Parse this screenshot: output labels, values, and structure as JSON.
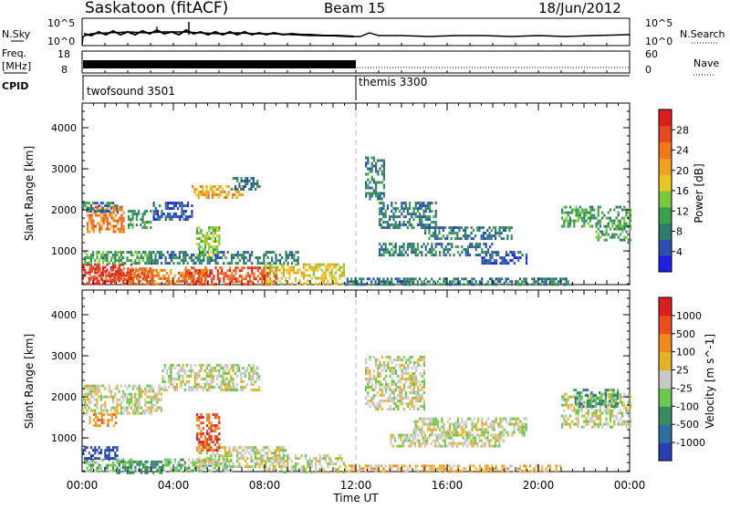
{
  "header": {
    "station": "Saskatoon (fitACF)",
    "beam": "Beam 15",
    "date": "18/Jun/2012"
  },
  "top_panels": {
    "nsky_label": "N.Sky",
    "nsky_ticks": [
      "10^5",
      "10^0"
    ],
    "nsearch_label": "N.Search",
    "nsearch_ticks": [
      "10^5",
      "10^0"
    ],
    "freq_label": "Freq.",
    "freq_unit": "[MHz]",
    "freq_ticks": [
      "18",
      "8"
    ],
    "nave_label": "Nave",
    "nave_ticks": [
      "60",
      "0"
    ],
    "cpid_label": "CPID",
    "cpid_segments": [
      {
        "label": "twofsound 3501",
        "start_hour": 0
      },
      {
        "label": "themis 3300",
        "start_hour": 12
      }
    ]
  },
  "power_colorbar": {
    "label": "Power [dB]",
    "ticks": [
      "28",
      "24",
      "20",
      "16",
      "12",
      "8",
      "4"
    ],
    "colors": [
      "#1e1ee6",
      "#2a4fb0",
      "#2f7a6a",
      "#3aa04a",
      "#7ac83c",
      "#e6c820",
      "#f0a01e",
      "#f07818",
      "#e64a1e",
      "#dc1e1e"
    ]
  },
  "velocity_colorbar": {
    "label": "Velocity [m s^-1]",
    "ticks": [
      "1000",
      "500",
      "100",
      "25",
      "-25",
      "-100",
      "-500",
      "-1000"
    ],
    "colors": [
      "#2a3fae",
      "#2f6ea0",
      "#3a8a62",
      "#6ac850",
      "#c8c8c8",
      "#e6b22a",
      "#f08a1e",
      "#e8501e",
      "#dc1e1e"
    ]
  },
  "chart_data": [
    {
      "type": "heatmap",
      "title": "Power",
      "ylabel": "Slant Range [km]",
      "xlabel": "",
      "xlim": [
        0,
        24
      ],
      "ylim": [
        180,
        4600
      ],
      "y_ticks": [
        1000,
        2000,
        3000,
        4000
      ],
      "x_ticks": [
        0,
        4,
        8,
        12,
        16,
        20,
        24
      ],
      "colorbar_label": "Power [dB]",
      "bands": [
        {
          "t": [
            0.0,
            2.2
          ],
          "r": [
            180,
            700
          ],
          "c": 9
        },
        {
          "t": [
            0.3,
            3.2
          ],
          "r": [
            300,
            600
          ],
          "c": 8
        },
        {
          "t": [
            2.0,
            5.5
          ],
          "r": [
            180,
            560
          ],
          "c": 7
        },
        {
          "t": [
            4.5,
            8.5
          ],
          "r": [
            220,
            620
          ],
          "c": 8
        },
        {
          "t": [
            8.0,
            11.5
          ],
          "r": [
            200,
            700
          ],
          "c": 5
        },
        {
          "t": [
            11.5,
            21.5
          ],
          "r": [
            200,
            350
          ],
          "c": 2
        },
        {
          "t": [
            0.0,
            3.0
          ],
          "r": [
            700,
            1000
          ],
          "c": 3
        },
        {
          "t": [
            3.0,
            9.5
          ],
          "r": [
            700,
            1000
          ],
          "c": 2
        },
        {
          "t": [
            0.2,
            1.8
          ],
          "r": [
            1500,
            2100
          ],
          "c": 7
        },
        {
          "t": [
            0.0,
            1.5
          ],
          "r": [
            2000,
            2200
          ],
          "c": 2
        },
        {
          "t": [
            2.0,
            3.0
          ],
          "r": [
            1600,
            2000
          ],
          "c": 3
        },
        {
          "t": [
            3.1,
            4.8
          ],
          "r": [
            1800,
            2200
          ],
          "c": 1
        },
        {
          "t": [
            4.8,
            7.0
          ],
          "r": [
            2300,
            2600
          ],
          "c": 6
        },
        {
          "t": [
            6.5,
            7.8
          ],
          "r": [
            2500,
            2800
          ],
          "c": 2
        },
        {
          "t": [
            5.0,
            6.0
          ],
          "r": [
            900,
            1600
          ],
          "c": 4
        },
        {
          "t": [
            12.4,
            13.2
          ],
          "r": [
            2300,
            3300
          ],
          "c": 2
        },
        {
          "t": [
            13.0,
            15.5
          ],
          "r": [
            1600,
            2200
          ],
          "c": 2
        },
        {
          "t": [
            15.0,
            19.0
          ],
          "r": [
            1300,
            1600
          ],
          "c": 2
        },
        {
          "t": [
            13.0,
            18.0
          ],
          "r": [
            900,
            1200
          ],
          "c": 2
        },
        {
          "t": [
            17.5,
            19.5
          ],
          "r": [
            700,
            1000
          ],
          "c": 1
        },
        {
          "t": [
            21.0,
            24.0
          ],
          "r": [
            1600,
            2100
          ],
          "c": 3
        },
        {
          "t": [
            22.5,
            24.0
          ],
          "r": [
            1300,
            1700
          ],
          "c": 3
        }
      ]
    },
    {
      "type": "heatmap",
      "title": "Velocity",
      "ylabel": "Slant Range [km]",
      "xlabel": "Time UT",
      "xlim": [
        0,
        24
      ],
      "ylim": [
        180,
        4600
      ],
      "y_ticks": [
        1000,
        2000,
        3000,
        4000
      ],
      "x_ticks": [
        0,
        4,
        8,
        12,
        16,
        20,
        24
      ],
      "x_tick_labels": [
        "00:00",
        "04:00",
        "08:00",
        "12:00",
        "16:00",
        "20:00",
        "00:00"
      ],
      "colorbar_label": "Velocity [m s^-1]",
      "bands": [
        {
          "t": [
            0.0,
            2.5
          ],
          "r": [
            180,
            500
          ],
          "c": 3
        },
        {
          "t": [
            0.0,
            1.5
          ],
          "r": [
            500,
            800
          ],
          "c": 0
        },
        {
          "t": [
            1.5,
            3.5
          ],
          "r": [
            180,
            450
          ],
          "c": 2
        },
        {
          "t": [
            3.5,
            6.5
          ],
          "r": [
            200,
            500
          ],
          "c": 3
        },
        {
          "t": [
            5.0,
            9.0
          ],
          "r": [
            300,
            800
          ],
          "c": 4
        },
        {
          "t": [
            8.0,
            11.5
          ],
          "r": [
            200,
            600
          ],
          "c": 4
        },
        {
          "t": [
            11.5,
            21.0
          ],
          "r": [
            180,
            350
          ],
          "c": 5
        },
        {
          "t": [
            0.0,
            3.5
          ],
          "r": [
            1600,
            2300
          ],
          "c": 4
        },
        {
          "t": [
            0.3,
            1.5
          ],
          "r": [
            1300,
            1600
          ],
          "c": 6
        },
        {
          "t": [
            3.5,
            7.8
          ],
          "r": [
            2200,
            2800
          ],
          "c": 4
        },
        {
          "t": [
            5.0,
            6.0
          ],
          "r": [
            700,
            1600
          ],
          "c": 7
        },
        {
          "t": [
            12.4,
            15.0
          ],
          "r": [
            1700,
            3000
          ],
          "c": 4
        },
        {
          "t": [
            14.5,
            19.5
          ],
          "r": [
            1100,
            1500
          ],
          "c": 4
        },
        {
          "t": [
            13.5,
            18.5
          ],
          "r": [
            800,
            1100
          ],
          "c": 4
        },
        {
          "t": [
            21.0,
            24.0
          ],
          "r": [
            1300,
            2100
          ],
          "c": 4
        },
        {
          "t": [
            21.5,
            23.5
          ],
          "r": [
            1800,
            2200
          ],
          "c": 2
        }
      ]
    }
  ]
}
